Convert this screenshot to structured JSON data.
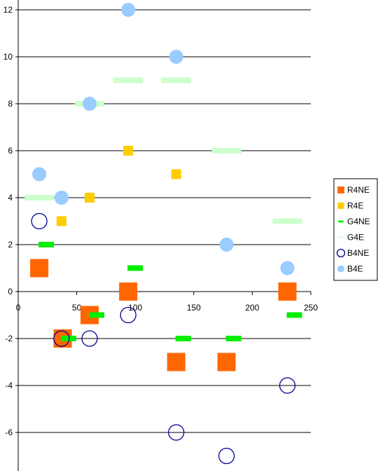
{
  "chart_data": {
    "type": "scatter",
    "title": "",
    "xlabel": "",
    "ylabel": "",
    "xlim": [
      0,
      250
    ],
    "ylim": [
      -7.7,
      12.5
    ],
    "x_ticks": [
      0,
      50,
      100,
      150,
      200,
      250
    ],
    "y_ticks": [
      -6,
      -4,
      -2,
      0,
      2,
      4,
      6,
      8,
      10,
      12
    ],
    "x_tick_labels": [
      "0",
      "50",
      "100",
      "150",
      "200",
      "250"
    ],
    "y_tick_labels": [
      "-6",
      "-4",
      "-2",
      "0",
      "2",
      "4",
      "6",
      "8",
      "10",
      "12"
    ],
    "grid": "horizontal major gridlines",
    "legend_position": "right",
    "series": [
      {
        "name": "R4NE",
        "marker": "square-filled",
        "color": "#ff6600",
        "points": [
          [
            18,
            1
          ],
          [
            38,
            -2
          ],
          [
            61,
            -1
          ],
          [
            94,
            0
          ],
          [
            135,
            -3
          ],
          [
            178,
            -3
          ],
          [
            230,
            0
          ]
        ]
      },
      {
        "name": "R4E",
        "marker": "square-filled-small",
        "color": "#ffcc00",
        "points": [
          [
            37,
            3
          ],
          [
            61,
            4
          ],
          [
            94,
            6
          ],
          [
            135,
            5
          ]
        ]
      },
      {
        "name": "G4NE",
        "marker": "dash",
        "color": "#00ee00",
        "points": [
          [
            24,
            2
          ],
          [
            43,
            -2
          ],
          [
            67,
            -1
          ],
          [
            100,
            1
          ],
          [
            141,
            -2
          ],
          [
            184,
            -2
          ],
          [
            236,
            -1
          ]
        ]
      },
      {
        "name": "G4E",
        "marker": "dash-long",
        "color": "#ccffcc",
        "points": [
          [
            18,
            4
          ],
          [
            61,
            8
          ],
          [
            94,
            9
          ],
          [
            135,
            9
          ],
          [
            178,
            6
          ],
          [
            230,
            3
          ]
        ]
      },
      {
        "name": "B4NE",
        "marker": "circle-open",
        "color": "#000099",
        "points": [
          [
            18,
            3
          ],
          [
            37,
            -2
          ],
          [
            61,
            -2
          ],
          [
            94,
            -1
          ],
          [
            135,
            -6
          ],
          [
            178,
            -7
          ],
          [
            230,
            -4
          ]
        ]
      },
      {
        "name": "B4E",
        "marker": "circle-filled",
        "color": "#99ccff",
        "points": [
          [
            18,
            5
          ],
          [
            37,
            4
          ],
          [
            61,
            8
          ],
          [
            94,
            12
          ],
          [
            135,
            10
          ],
          [
            178,
            2
          ],
          [
            230,
            1
          ]
        ]
      }
    ]
  }
}
